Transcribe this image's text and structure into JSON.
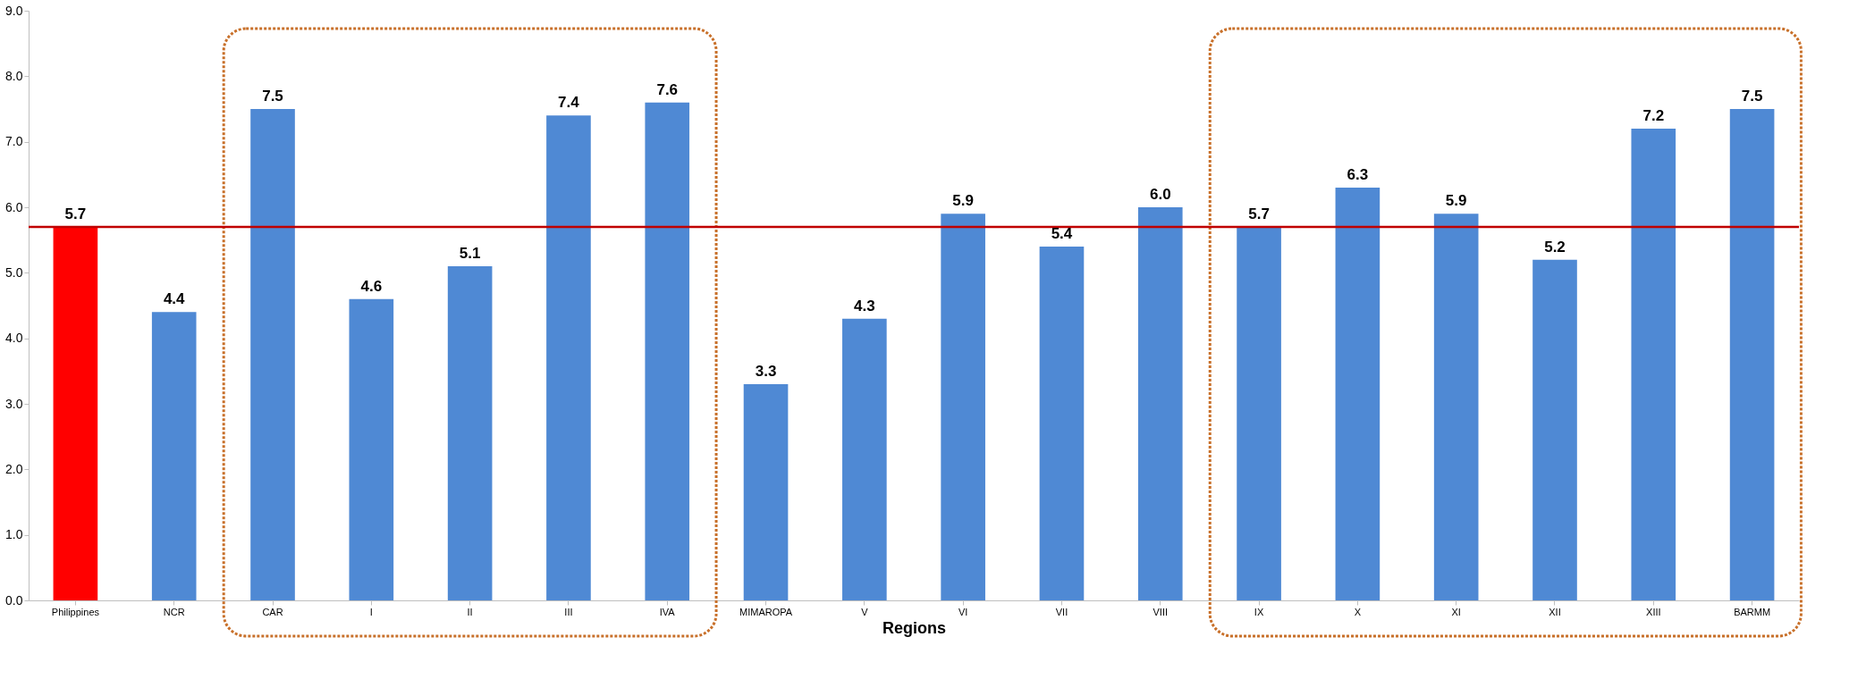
{
  "chart_data": {
    "type": "bar",
    "xlabel": "Regions",
    "categories": [
      "Philippines",
      "NCR",
      "CAR",
      "I",
      "II",
      "III",
      "IVA",
      "MIMAROPA",
      "V",
      "VI",
      "VII",
      "VIII",
      "IX",
      "X",
      "XI",
      "XII",
      "XIII",
      "BARMM"
    ],
    "values": [
      5.7,
      4.4,
      7.5,
      4.6,
      5.1,
      7.4,
      7.6,
      3.3,
      4.3,
      5.9,
      5.4,
      6.0,
      5.7,
      6.3,
      5.9,
      5.2,
      7.2,
      7.5
    ],
    "value_labels": [
      "5.7",
      "4.4",
      "7.5",
      "4.6",
      "5.1",
      "7.4",
      "7.6",
      "3.3",
      "4.3",
      "5.9",
      "5.4",
      "6.0",
      "5.7",
      "6.3",
      "5.9",
      "5.2",
      "7.2",
      "7.5"
    ],
    "colors": [
      "#ff0000",
      "#4f89d4",
      "#4f89d4",
      "#4f89d4",
      "#4f89d4",
      "#4f89d4",
      "#4f89d4",
      "#4f89d4",
      "#4f89d4",
      "#4f89d4",
      "#4f89d4",
      "#4f89d4",
      "#4f89d4",
      "#4f89d4",
      "#4f89d4",
      "#4f89d4",
      "#4f89d4",
      "#4f89d4"
    ],
    "ylim": [
      0,
      9
    ],
    "yticks": [
      {
        "value": 0,
        "label": "0.0"
      },
      {
        "value": 1,
        "label": "1.0"
      },
      {
        "value": 2,
        "label": "2.0"
      },
      {
        "value": 3,
        "label": "3.0"
      },
      {
        "value": 4,
        "label": "4.0"
      },
      {
        "value": 5,
        "label": "5.0"
      },
      {
        "value": 6,
        "label": "6.0"
      },
      {
        "value": 7,
        "label": "7.0"
      },
      {
        "value": 8,
        "label": "8.0"
      },
      {
        "value": 9,
        "label": "9.0"
      }
    ],
    "ref_lines": [
      {
        "axis": "y",
        "value": 5.7,
        "color": "#c00000"
      }
    ],
    "grid": false
  }
}
